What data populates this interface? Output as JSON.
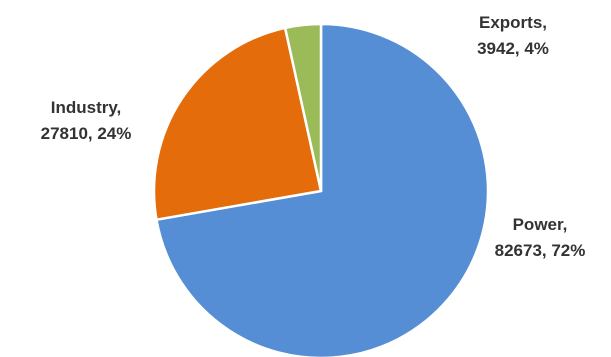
{
  "chart_data": {
    "type": "pie",
    "title": "",
    "slices": [
      {
        "label": "Power, 82673, 72%",
        "category": "Power",
        "value": 82673,
        "percent": 72,
        "color": "#558ED5"
      },
      {
        "label": "Industry, 27810, 24%",
        "category": "Industry",
        "value": 27810,
        "percent": 24,
        "color": "#E46C0A"
      },
      {
        "label": "Exports, 3942, 4%",
        "category": "Exports",
        "value": 3942,
        "percent": 4,
        "color": "#9BBB59"
      }
    ],
    "start_angle_deg": 0,
    "direction": "clockwise",
    "legend": "none"
  }
}
